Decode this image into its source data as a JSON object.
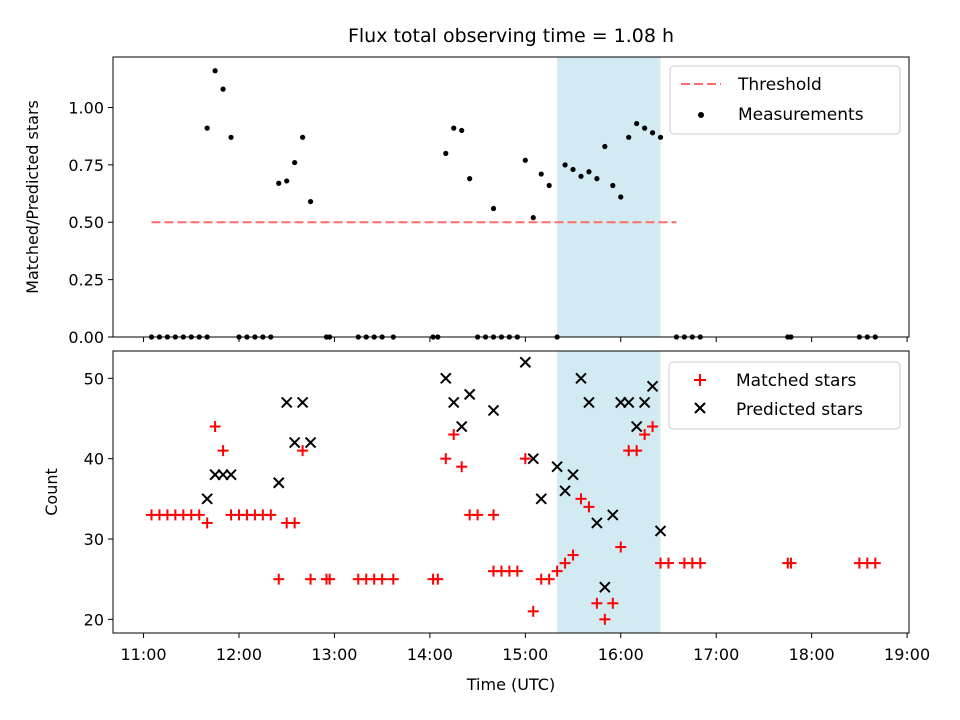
{
  "chart_data": [
    {
      "type": "scatter",
      "title": "Flux total observing time = 1.08 h",
      "xlabel": "",
      "ylabel": "Matched/Predicted stars",
      "ylim": [
        0,
        1.22
      ],
      "yticks": [
        "0.00",
        "0.25",
        "0.50",
        "0.75",
        "1.00"
      ],
      "ytick_values": [
        0,
        0.25,
        0.5,
        0.75,
        1.0
      ],
      "xlim_hours": [
        10.68,
        19.02
      ],
      "legend_position": "top-right",
      "shaded_region": {
        "start": "15:20",
        "end": "16:25",
        "color": "#add8e6"
      },
      "colors": {
        "threshold": "#ff6b6b",
        "measurements": "#000000"
      },
      "threshold": {
        "name": "Threshold",
        "y": 0.5,
        "x_start": "11:05",
        "x_end": "16:35"
      },
      "series": [
        {
          "name": "Measurements",
          "points": [
            [
              "11:05",
              0
            ],
            [
              "11:10",
              0
            ],
            [
              "11:15",
              0
            ],
            [
              "11:20",
              0
            ],
            [
              "11:25",
              0
            ],
            [
              "11:30",
              0
            ],
            [
              "11:35",
              0
            ],
            [
              "11:40",
              0
            ],
            [
              "11:40",
              0.91
            ],
            [
              "11:45",
              1.16
            ],
            [
              "11:50",
              1.08
            ],
            [
              "11:55",
              0.87
            ],
            [
              "12:00",
              0
            ],
            [
              "12:05",
              0
            ],
            [
              "12:10",
              0
            ],
            [
              "12:15",
              0
            ],
            [
              "12:20",
              0
            ],
            [
              "12:25",
              0.67
            ],
            [
              "12:30",
              0.68
            ],
            [
              "12:35",
              0.76
            ],
            [
              "12:40",
              0.87
            ],
            [
              "12:45",
              0.59
            ],
            [
              "12:55",
              0
            ],
            [
              "12:57",
              0
            ],
            [
              "13:15",
              0
            ],
            [
              "13:20",
              0
            ],
            [
              "13:25",
              0
            ],
            [
              "13:30",
              0
            ],
            [
              "13:37",
              0
            ],
            [
              "14:02",
              0
            ],
            [
              "14:05",
              0
            ],
            [
              "14:10",
              0.8
            ],
            [
              "14:15",
              0.91
            ],
            [
              "14:20",
              0.9
            ],
            [
              "14:25",
              0.69
            ],
            [
              "14:30",
              0
            ],
            [
              "14:35",
              0
            ],
            [
              "14:40",
              0
            ],
            [
              "14:45",
              0
            ],
            [
              "14:50",
              0
            ],
            [
              "14:55",
              0
            ],
            [
              "14:40",
              0.56
            ],
            [
              "15:00",
              0.77
            ],
            [
              "15:05",
              0.52
            ],
            [
              "15:10",
              0.71
            ],
            [
              "15:15",
              0.66
            ],
            [
              "15:20",
              0
            ],
            [
              "15:25",
              0.75
            ],
            [
              "15:30",
              0.73
            ],
            [
              "15:35",
              0.7
            ],
            [
              "15:40",
              0.72
            ],
            [
              "15:45",
              0.69
            ],
            [
              "15:50",
              0.83
            ],
            [
              "15:55",
              0.66
            ],
            [
              "16:00",
              0.61
            ],
            [
              "16:05",
              0.87
            ],
            [
              "16:10",
              0.93
            ],
            [
              "16:15",
              0.91
            ],
            [
              "16:20",
              0.89
            ],
            [
              "16:25",
              0.87
            ],
            [
              "16:35",
              0
            ],
            [
              "16:40",
              0
            ],
            [
              "16:45",
              0
            ],
            [
              "16:50",
              0
            ],
            [
              "17:45",
              0
            ],
            [
              "17:47",
              0
            ],
            [
              "18:30",
              0
            ],
            [
              "18:35",
              0
            ],
            [
              "18:40",
              0
            ]
          ]
        }
      ]
    },
    {
      "type": "scatter",
      "title": "",
      "xlabel": "Time (UTC)",
      "ylabel": "Count",
      "ylim": [
        18.3,
        53.4
      ],
      "yticks": [
        "20",
        "30",
        "40",
        "50"
      ],
      "ytick_values": [
        20,
        30,
        40,
        50
      ],
      "xticks": [
        "11:00",
        "12:00",
        "13:00",
        "14:00",
        "15:00",
        "16:00",
        "17:00",
        "18:00",
        "19:00"
      ],
      "xtick_hours": [
        11,
        12,
        13,
        14,
        15,
        16,
        17,
        18,
        19
      ],
      "xlim_hours": [
        10.68,
        19.02
      ],
      "legend_position": "top-right",
      "shaded_region": {
        "start": "15:20",
        "end": "16:25",
        "color": "#add8e6"
      },
      "colors": {
        "matched": "#ff0000",
        "predicted": "#000000"
      },
      "series": [
        {
          "name": "Matched stars",
          "points": [
            [
              "11:05",
              33
            ],
            [
              "11:10",
              33
            ],
            [
              "11:15",
              33
            ],
            [
              "11:20",
              33
            ],
            [
              "11:25",
              33
            ],
            [
              "11:30",
              33
            ],
            [
              "11:35",
              33
            ],
            [
              "11:40",
              32
            ],
            [
              "11:45",
              44
            ],
            [
              "11:50",
              41
            ],
            [
              "11:55",
              33
            ],
            [
              "12:00",
              33
            ],
            [
              "12:05",
              33
            ],
            [
              "12:10",
              33
            ],
            [
              "12:15",
              33
            ],
            [
              "12:20",
              33
            ],
            [
              "12:25",
              25
            ],
            [
              "12:30",
              32
            ],
            [
              "12:35",
              32
            ],
            [
              "12:40",
              41
            ],
            [
              "12:45",
              25
            ],
            [
              "12:55",
              25
            ],
            [
              "12:57",
              25
            ],
            [
              "13:15",
              25
            ],
            [
              "13:20",
              25
            ],
            [
              "13:25",
              25
            ],
            [
              "13:30",
              25
            ],
            [
              "13:37",
              25
            ],
            [
              "14:02",
              25
            ],
            [
              "14:05",
              25
            ],
            [
              "14:10",
              40
            ],
            [
              "14:15",
              43
            ],
            [
              "14:20",
              39
            ],
            [
              "14:25",
              33
            ],
            [
              "14:30",
              33
            ],
            [
              "14:40",
              33
            ],
            [
              "14:40",
              26
            ],
            [
              "14:45",
              26
            ],
            [
              "14:50",
              26
            ],
            [
              "14:55",
              26
            ],
            [
              "15:00",
              40
            ],
            [
              "15:05",
              21
            ],
            [
              "15:10",
              25
            ],
            [
              "15:15",
              25
            ],
            [
              "15:20",
              26
            ],
            [
              "15:25",
              27
            ],
            [
              "15:30",
              28
            ],
            [
              "15:35",
              35
            ],
            [
              "15:40",
              34
            ],
            [
              "15:45",
              22
            ],
            [
              "15:50",
              20
            ],
            [
              "15:55",
              22
            ],
            [
              "16:00",
              29
            ],
            [
              "16:05",
              41
            ],
            [
              "16:10",
              41
            ],
            [
              "16:15",
              43
            ],
            [
              "16:20",
              44
            ],
            [
              "16:25",
              27
            ],
            [
              "16:30",
              27
            ],
            [
              "16:40",
              27
            ],
            [
              "16:45",
              27
            ],
            [
              "16:50",
              27
            ],
            [
              "17:45",
              27
            ],
            [
              "17:47",
              27
            ],
            [
              "18:30",
              27
            ],
            [
              "18:35",
              27
            ],
            [
              "18:40",
              27
            ]
          ]
        },
        {
          "name": "Predicted stars",
          "points": [
            [
              "11:40",
              35
            ],
            [
              "11:45",
              38
            ],
            [
              "11:50",
              38
            ],
            [
              "11:55",
              38
            ],
            [
              "12:25",
              37
            ],
            [
              "12:30",
              47
            ],
            [
              "12:35",
              42
            ],
            [
              "12:40",
              47
            ],
            [
              "12:45",
              42
            ],
            [
              "14:10",
              50
            ],
            [
              "14:15",
              47
            ],
            [
              "14:20",
              44
            ],
            [
              "14:25",
              48
            ],
            [
              "14:40",
              46
            ],
            [
              "15:00",
              52
            ],
            [
              "15:05",
              40
            ],
            [
              "15:10",
              35
            ],
            [
              "15:20",
              39
            ],
            [
              "15:25",
              36
            ],
            [
              "15:30",
              38
            ],
            [
              "15:35",
              50
            ],
            [
              "15:40",
              47
            ],
            [
              "15:45",
              32
            ],
            [
              "15:50",
              24
            ],
            [
              "15:55",
              33
            ],
            [
              "16:00",
              47
            ],
            [
              "16:05",
              47
            ],
            [
              "16:10",
              44
            ],
            [
              "16:15",
              47
            ],
            [
              "16:20",
              49
            ],
            [
              "16:25",
              31
            ]
          ]
        }
      ]
    }
  ]
}
